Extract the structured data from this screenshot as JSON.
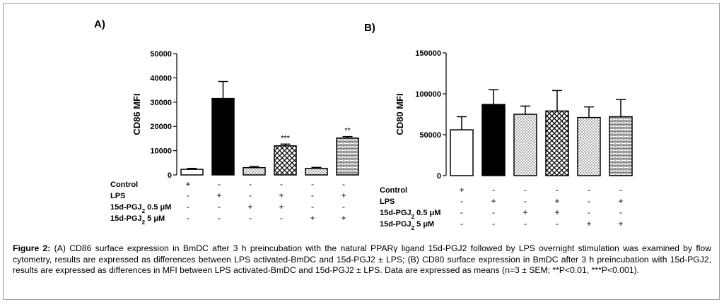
{
  "chart_data": [
    {
      "type": "bar",
      "panel_label": "A)",
      "ylabel": "CD86 MFI",
      "ylim": [
        0,
        50000
      ],
      "yticks": [
        0,
        10000,
        20000,
        30000,
        40000,
        50000
      ],
      "condition_rows": [
        {
          "label": "Control",
          "signs": [
            "+",
            "-",
            "-",
            "-",
            "-",
            "-"
          ]
        },
        {
          "label": "LPS",
          "signs": [
            "-",
            "+",
            "-",
            "+",
            "-",
            "+"
          ]
        },
        {
          "label": "15d-PGJ₂ 0.5 μM",
          "signs": [
            "-",
            "-",
            "+",
            "+",
            "-",
            "-"
          ]
        },
        {
          "label": "15d-PGJ₂ 5 μM",
          "signs": [
            "-",
            "-",
            "-",
            "-",
            "+",
            "+"
          ]
        }
      ],
      "values": [
        2300,
        31500,
        3000,
        12000,
        2700,
        15200
      ],
      "errors": [
        400,
        7000,
        500,
        700,
        400,
        600
      ],
      "fills": [
        "white",
        "black",
        "dots",
        "crosshatch",
        "dots",
        "brick"
      ],
      "annotations": [
        "",
        "",
        "",
        "***",
        "",
        "**"
      ]
    },
    {
      "type": "bar",
      "panel_label": "B)",
      "ylabel": "CD80 MFI",
      "ylim": [
        0,
        150000
      ],
      "yticks": [
        0,
        50000,
        100000,
        150000
      ],
      "condition_rows": [
        {
          "label": "Control",
          "signs": [
            "+",
            "-",
            "-",
            "-",
            "-",
            "-"
          ]
        },
        {
          "label": "LPS",
          "signs": [
            "-",
            "+",
            "-",
            "+",
            "-",
            "+"
          ]
        },
        {
          "label": "15d-PGJ₂ 0.5 μM",
          "signs": [
            "-",
            "-",
            "+",
            "+",
            "-",
            "-"
          ]
        },
        {
          "label": "15d-PGJ₂ 5 μM",
          "signs": [
            "-",
            "-",
            "-",
            "-",
            "+",
            "+"
          ]
        }
      ],
      "values": [
        56000,
        87000,
        75000,
        79000,
        71000,
        72000
      ],
      "errors": [
        16000,
        18000,
        10000,
        25000,
        13000,
        21000
      ],
      "fills": [
        "white",
        "black",
        "dots",
        "crosshatch",
        "dots",
        "brick"
      ],
      "annotations": [
        "",
        "",
        "",
        "",
        "",
        ""
      ]
    }
  ],
  "caption": {
    "label": "Figure 2:",
    "text": " (A) CD86 surface expression in BmDC after 3 h preincubation with the natural PPARγ ligand 15d-PGJ2 followed by LPS overnight stimulation was examined by flow cytometry, results are expressed as differences between LPS activated-BmDC and 15d-PGJ2 ± LPS; (B) CD80 surface expression in BmDC after 3 h preincubation with 15d-PGJ2, results are expressed as differences in MFI between LPS activated-BmDC and 15d-PGJ2 ± LPS. Data are expressed as means (n=3 ± SEM; **P<0.01, ***P<0.001)."
  }
}
